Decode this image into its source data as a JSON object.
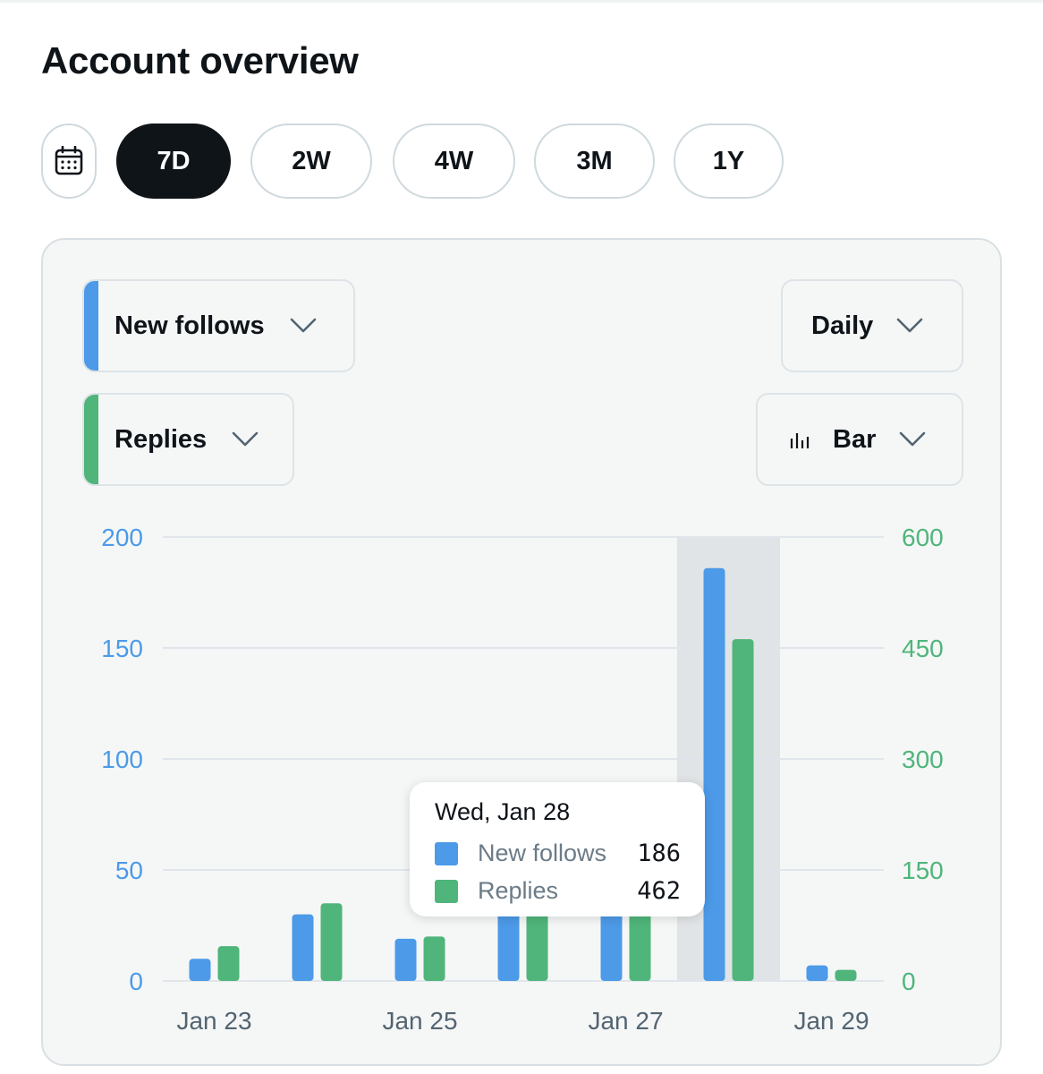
{
  "page": {
    "title": "Account overview"
  },
  "range": {
    "options": [
      "7D",
      "2W",
      "4W",
      "3M",
      "1Y"
    ],
    "selected": "7D",
    "calendar_icon": "calendar-icon"
  },
  "metrics": {
    "primary": {
      "label": "New follows",
      "color": "#4c9ae8"
    },
    "secondary": {
      "label": "Replies",
      "color": "#4fb57a"
    }
  },
  "controls": {
    "interval": "Daily",
    "chart_type": "Bar",
    "chart_type_icon": "bar-chart-icon",
    "dropdown_icon": "chevron-down-icon"
  },
  "chart_data": {
    "type": "bar",
    "categories": [
      "Jan 23",
      "Jan 24",
      "Jan 25",
      "Jan 26",
      "Jan 27",
      "Jan 28",
      "Jan 29"
    ],
    "x_tick_labels": [
      "Jan 23",
      "",
      "Jan 25",
      "",
      "Jan 27",
      "",
      "Jan 29"
    ],
    "series": [
      {
        "name": "New follows",
        "axis": "left",
        "color": "#4c9ae8",
        "values": [
          10,
          30,
          19,
          36,
          38,
          186,
          7
        ]
      },
      {
        "name": "Replies",
        "axis": "right",
        "color": "#4fb57a",
        "values": [
          47,
          105,
          60,
          110,
          115,
          462,
          15
        ]
      }
    ],
    "y_left": {
      "ticks": [
        "0",
        "50",
        "100",
        "150",
        "200"
      ],
      "ylim": [
        0,
        200
      ],
      "color": "#4c9ae8"
    },
    "y_right": {
      "ticks": [
        "0",
        "150",
        "300",
        "450",
        "600"
      ],
      "ylim": [
        0,
        600
      ],
      "color": "#4fb57a"
    },
    "grid": true,
    "highlighted_index": 5
  },
  "tooltip": {
    "date": "Wed, Jan 28",
    "rows": [
      {
        "name": "New follows",
        "value": "186",
        "color": "#4c9ae8"
      },
      {
        "name": "Replies",
        "value": "462",
        "color": "#4fb57a"
      }
    ]
  }
}
